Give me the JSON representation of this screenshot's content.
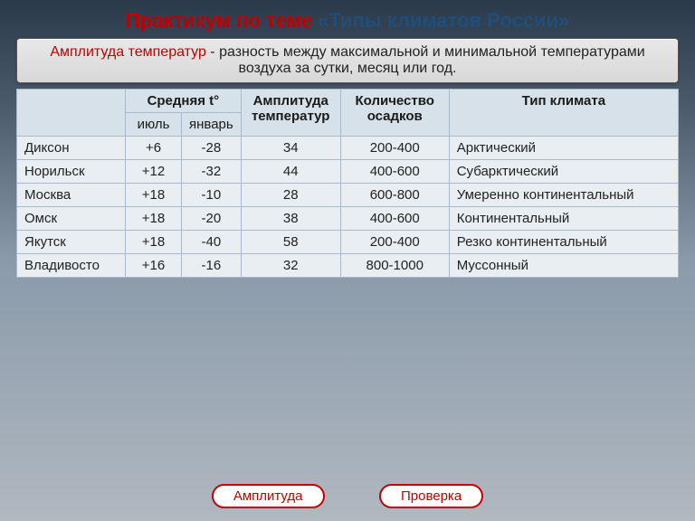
{
  "title": {
    "pre": "Практикум по теме ",
    "main": "«Типы климатов России»"
  },
  "definition": {
    "term": "Амплитуда температур",
    "text": " -  разность между максимальной и минимальной температурами воздуха за сутки, месяц или год."
  },
  "table": {
    "header": {
      "avg_t": "Средняя t°",
      "july": "июль",
      "january": "январь",
      "amplitude": "Амплитуда температур",
      "precip": "Количество осадков",
      "climate": "Тип климата"
    },
    "rows": [
      {
        "city": "Диксон",
        "july": "+6",
        "jan": "-28",
        "amp": "34",
        "prec": "200-400",
        "clim": "Арктический"
      },
      {
        "city": "Норильск",
        "july": "+12",
        "jan": "-32",
        "amp": "44",
        "prec": "400-600",
        "clim": "Субарктический"
      },
      {
        "city": "Москва",
        "july": "+18",
        "jan": "-10",
        "amp": "28",
        "prec": "600-800",
        "clim": "Умеренно континентальный"
      },
      {
        "city": "Омск",
        "july": "+18",
        "jan": "-20",
        "amp": "38",
        "prec": "400-600",
        "clim": "Континентальный"
      },
      {
        "city": "Якутск",
        "july": "+18",
        "jan": "-40",
        "amp": "58",
        "prec": "200-400",
        "clim": "Резко континентальный"
      },
      {
        "city": "Владивосто",
        "july": "+16",
        "jan": "-16",
        "amp": "32",
        "prec": "800-1000",
        "clim": "Муссонный"
      }
    ]
  },
  "buttons": {
    "amplitude": "Амплитуда",
    "check": "Проверка"
  },
  "colors": {
    "accent_red": "#c00000",
    "accent_blue": "#1f4e79",
    "table_header_bg": "#d6e1ea",
    "table_cell_bg": "#e8eef2",
    "border": "#a9b9c9"
  }
}
